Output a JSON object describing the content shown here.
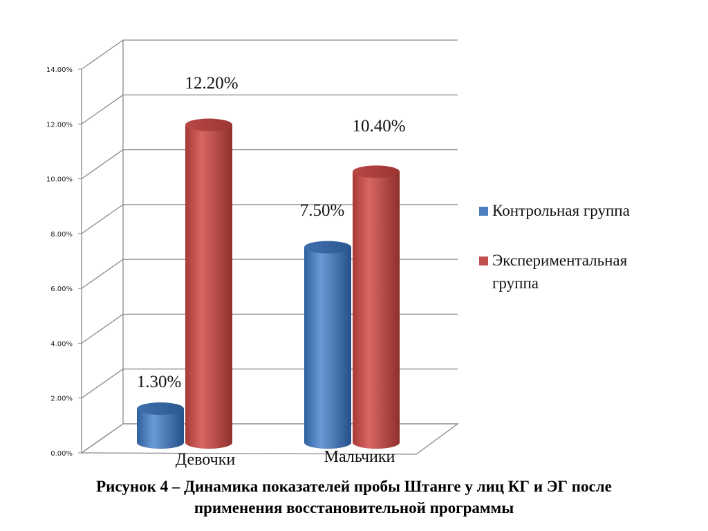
{
  "chart_data": {
    "type": "bar",
    "style": "3d-cylinder",
    "categories": [
      "Девочки",
      "Мальчики"
    ],
    "series": [
      {
        "name": "Контрольная группа",
        "color": "#4a7ebf",
        "values": [
          1.3,
          7.5
        ],
        "labels": [
          "1.30%",
          "7.50%"
        ]
      },
      {
        "name": "Экспериментальная группа",
        "color": "#c0504d",
        "values": [
          12.2,
          10.4
        ],
        "labels": [
          "12.20%",
          "10.40%"
        ]
      }
    ],
    "ylim": [
      0,
      14
    ],
    "yticks": [
      0,
      2,
      4,
      6,
      8,
      10,
      12,
      14
    ],
    "ytick_labels": [
      "0.00%",
      "2.00%",
      "4.00%",
      "6.00%",
      "8.00%",
      "10.00%",
      "12.00%",
      "14.00%"
    ],
    "grid": true,
    "legend_position": "right"
  },
  "legend": {
    "items": [
      {
        "line1": "Контрольная группа",
        "line2": ""
      },
      {
        "line1": "Экспериментальная",
        "line2": "группа"
      }
    ]
  },
  "caption": {
    "line1": "Рисунок 4 – Динамика показателей пробы Штанге у лиц КГ и ЭГ после",
    "line2": "применения восстановительной программы"
  }
}
